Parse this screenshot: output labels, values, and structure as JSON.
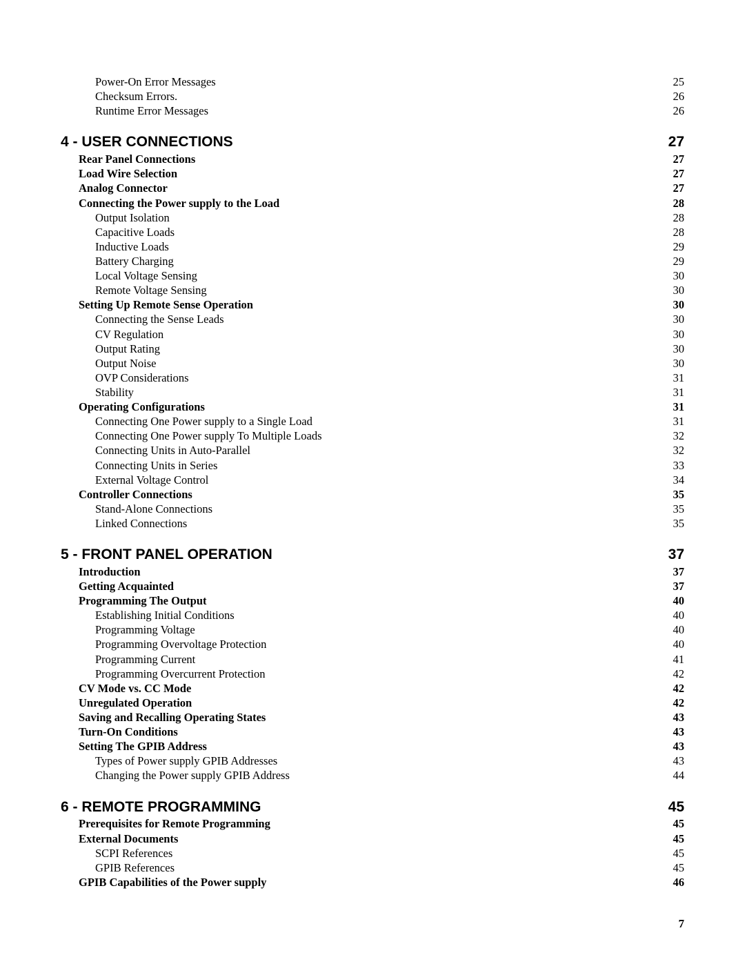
{
  "page_number": "7",
  "entries": [
    {
      "level": 3,
      "title": "Power-On Error Messages",
      "page": "25"
    },
    {
      "level": 3,
      "title": "Checksum Errors.",
      "page": "26"
    },
    {
      "level": 3,
      "title": "Runtime Error Messages",
      "page": "26"
    },
    {
      "level": 1,
      "title": "4 - USER CONNECTIONS",
      "page": "27"
    },
    {
      "level": 2,
      "title": "Rear Panel Connections",
      "page": "27"
    },
    {
      "level": 2,
      "title": "Load Wire Selection",
      "page": "27"
    },
    {
      "level": 2,
      "title": "Analog Connector",
      "page": "27"
    },
    {
      "level": 2,
      "title": "Connecting the Power supply to the Load",
      "page": "28"
    },
    {
      "level": 3,
      "title": "Output Isolation",
      "page": "28"
    },
    {
      "level": 3,
      "title": "Capacitive Loads",
      "page": "28"
    },
    {
      "level": 3,
      "title": "Inductive Loads",
      "page": "29"
    },
    {
      "level": 3,
      "title": "Battery Charging",
      "page": "29"
    },
    {
      "level": 3,
      "title": "Local Voltage Sensing",
      "page": "30"
    },
    {
      "level": 3,
      "title": "Remote Voltage Sensing",
      "page": "30"
    },
    {
      "level": 2,
      "title": "Setting Up Remote Sense Operation",
      "page": "30"
    },
    {
      "level": 3,
      "title": "Connecting the Sense Leads",
      "page": "30"
    },
    {
      "level": 3,
      "title": "CV Regulation",
      "page": "30"
    },
    {
      "level": 3,
      "title": "Output Rating",
      "page": "30"
    },
    {
      "level": 3,
      "title": "Output Noise",
      "page": "30"
    },
    {
      "level": 3,
      "title": "OVP Considerations",
      "page": "31"
    },
    {
      "level": 3,
      "title": "Stability",
      "page": "31"
    },
    {
      "level": 2,
      "title": "Operating Configurations",
      "page": "31"
    },
    {
      "level": 3,
      "title": "Connecting One Power supply to a Single Load",
      "page": "31"
    },
    {
      "level": 3,
      "title": "Connecting One Power supply To Multiple Loads",
      "page": "32"
    },
    {
      "level": 3,
      "title": "Connecting Units in Auto-Parallel",
      "page": "32"
    },
    {
      "level": 3,
      "title": "Connecting Units in Series",
      "page": "33"
    },
    {
      "level": 3,
      "title": "External Voltage Control",
      "page": "34"
    },
    {
      "level": 2,
      "title": "Controller Connections",
      "page": "35"
    },
    {
      "level": 3,
      "title": "Stand-Alone Connections",
      "page": "35"
    },
    {
      "level": 3,
      "title": "Linked Connections",
      "page": "35"
    },
    {
      "level": 1,
      "title": "5 - FRONT PANEL OPERATION",
      "page": "37"
    },
    {
      "level": 2,
      "title": "Introduction",
      "page": "37"
    },
    {
      "level": 2,
      "title": "Getting Acquainted",
      "page": "37"
    },
    {
      "level": 2,
      "title": "Programming The Output",
      "page": "40"
    },
    {
      "level": 3,
      "title": "Establishing Initial Conditions",
      "page": "40"
    },
    {
      "level": 3,
      "title": "Programming Voltage",
      "page": "40"
    },
    {
      "level": 3,
      "title": "Programming Overvoltage Protection",
      "page": "40"
    },
    {
      "level": 3,
      "title": "Programming Current",
      "page": "41"
    },
    {
      "level": 3,
      "title": "Programming Overcurrent Protection",
      "page": "42"
    },
    {
      "level": 2,
      "title": "CV Mode vs. CC Mode",
      "page": "42"
    },
    {
      "level": 2,
      "title": "Unregulated Operation",
      "page": "42"
    },
    {
      "level": 2,
      "title": "Saving and Recalling Operating States",
      "page": "43"
    },
    {
      "level": 2,
      "title": "Turn-On Conditions",
      "page": "43"
    },
    {
      "level": 2,
      "title": "Setting The GPIB Address",
      "page": "43"
    },
    {
      "level": 3,
      "title": "Types of Power supply GPIB Addresses",
      "page": "43"
    },
    {
      "level": 3,
      "title": "Changing the Power supply GPIB Address",
      "page": "44"
    },
    {
      "level": 1,
      "title": "6 - REMOTE PROGRAMMING",
      "page": "45"
    },
    {
      "level": 2,
      "title": "Prerequisites for Remote Programming",
      "page": "45"
    },
    {
      "level": 2,
      "title": "External Documents",
      "page": "45"
    },
    {
      "level": 3,
      "title": "SCPI References",
      "page": "45"
    },
    {
      "level": 3,
      "title": "GPIB References",
      "page": "45"
    },
    {
      "level": 2,
      "title": "GPIB Capabilities of the Power supply",
      "page": "46"
    }
  ]
}
